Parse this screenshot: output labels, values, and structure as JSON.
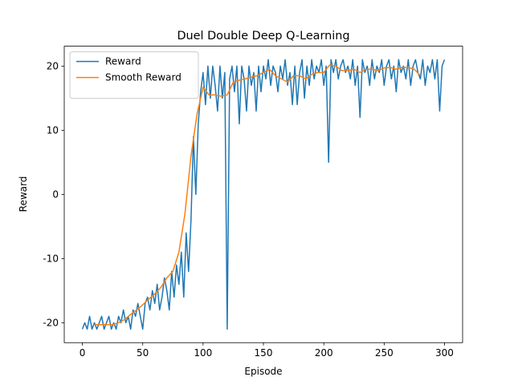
{
  "chart_data": {
    "type": "line",
    "title": "Duel Double Deep Q-Learning",
    "xlabel": "Episode",
    "ylabel": "Reward",
    "xlim": [
      -15,
      315
    ],
    "ylim": [
      -23.1,
      23.1
    ],
    "xticks": [
      0,
      50,
      100,
      150,
      200,
      250,
      300
    ],
    "yticks": [
      -20,
      -10,
      0,
      10,
      20
    ],
    "legend": "upper left",
    "series": [
      {
        "name": "Reward",
        "color": "#1f77b4",
        "x": [
          0,
          2,
          4,
          6,
          8,
          10,
          12,
          14,
          16,
          18,
          20,
          22,
          24,
          26,
          28,
          30,
          32,
          34,
          36,
          38,
          40,
          42,
          44,
          46,
          48,
          50,
          52,
          54,
          56,
          58,
          60,
          62,
          64,
          66,
          68,
          70,
          72,
          74,
          76,
          78,
          80,
          82,
          84,
          86,
          88,
          90,
          92,
          94,
          96,
          98,
          100,
          102,
          104,
          106,
          108,
          110,
          112,
          114,
          116,
          118,
          120,
          122,
          124,
          126,
          128,
          130,
          132,
          134,
          136,
          138,
          140,
          142,
          144,
          146,
          148,
          150,
          152,
          154,
          156,
          158,
          160,
          162,
          164,
          166,
          168,
          170,
          172,
          174,
          176,
          178,
          180,
          182,
          184,
          186,
          188,
          190,
          192,
          194,
          196,
          198,
          200,
          202,
          204,
          206,
          208,
          210,
          212,
          214,
          216,
          218,
          220,
          222,
          224,
          226,
          228,
          230,
          232,
          234,
          236,
          238,
          240,
          242,
          244,
          246,
          248,
          250,
          252,
          254,
          256,
          258,
          260,
          262,
          264,
          266,
          268,
          270,
          272,
          274,
          276,
          278,
          280,
          282,
          284,
          286,
          288,
          290,
          292,
          294,
          296,
          298,
          300
        ],
        "values": [
          -21,
          -20,
          -21,
          -19,
          -21,
          -20,
          -21,
          -20,
          -19,
          -21,
          -20,
          -19,
          -21,
          -20,
          -21,
          -19,
          -20,
          -18,
          -20,
          -19,
          -21,
          -18,
          -19,
          -17,
          -19,
          -21,
          -17,
          -16,
          -18,
          -15,
          -17,
          -14,
          -18,
          -16,
          -13,
          -15,
          -18,
          -12,
          -16,
          -11,
          -14,
          -9,
          -16,
          -6,
          -12,
          -4,
          9,
          0,
          11,
          16,
          19,
          14,
          20,
          15,
          20,
          17,
          13,
          20,
          15,
          19,
          -21,
          18,
          20,
          16,
          20,
          11,
          20,
          18,
          13,
          20,
          17,
          19,
          13,
          20,
          16,
          20,
          18,
          21,
          17,
          20,
          19,
          16,
          20,
          18,
          21,
          17,
          19,
          14,
          20,
          14,
          19,
          21,
          15,
          20,
          17,
          21,
          18,
          20,
          19,
          21,
          17,
          20,
          5,
          21,
          19,
          21,
          18,
          20,
          21,
          19,
          20,
          18,
          21,
          17,
          20,
          12,
          21,
          19,
          20,
          17,
          21,
          18,
          20,
          19,
          21,
          17,
          20,
          21,
          18,
          20,
          16,
          21,
          19,
          20,
          18,
          21,
          17,
          20,
          21,
          19,
          18,
          21,
          17,
          20,
          19,
          21,
          18,
          21,
          13,
          20,
          21
        ]
      },
      {
        "name": "Smooth Reward",
        "color": "#ff7f0e",
        "x": [
          10,
          15,
          20,
          25,
          30,
          35,
          40,
          45,
          50,
          55,
          60,
          65,
          70,
          75,
          80,
          85,
          90,
          95,
          100,
          105,
          110,
          115,
          120,
          125,
          130,
          135,
          140,
          145,
          150,
          155,
          160,
          165,
          170,
          175,
          180,
          185,
          190,
          195,
          200,
          205,
          210,
          215,
          220,
          225,
          230,
          235,
          240,
          245,
          250,
          255,
          260,
          265,
          270,
          275,
          280
        ],
        "values": [
          -20.3,
          -20.3,
          -20.3,
          -20.3,
          -20.0,
          -19.5,
          -18.7,
          -18.0,
          -17.2,
          -16.3,
          -15.5,
          -14.5,
          -13.0,
          -12.0,
          -9.0,
          -3.0,
          6.0,
          12.5,
          16.7,
          15.5,
          15.5,
          15.3,
          15.5,
          17.5,
          17.8,
          18.0,
          18.3,
          18.5,
          19.0,
          19.5,
          18.5,
          18.0,
          17.5,
          18.5,
          18.5,
          18.0,
          18.7,
          19.0,
          19.0,
          20.2,
          20.0,
          19.3,
          19.3,
          19.5,
          19.0,
          19.5,
          19.5,
          19.3,
          19.7,
          19.8,
          19.5,
          19.8,
          19.8,
          19.5,
          18.5
        ]
      }
    ]
  }
}
